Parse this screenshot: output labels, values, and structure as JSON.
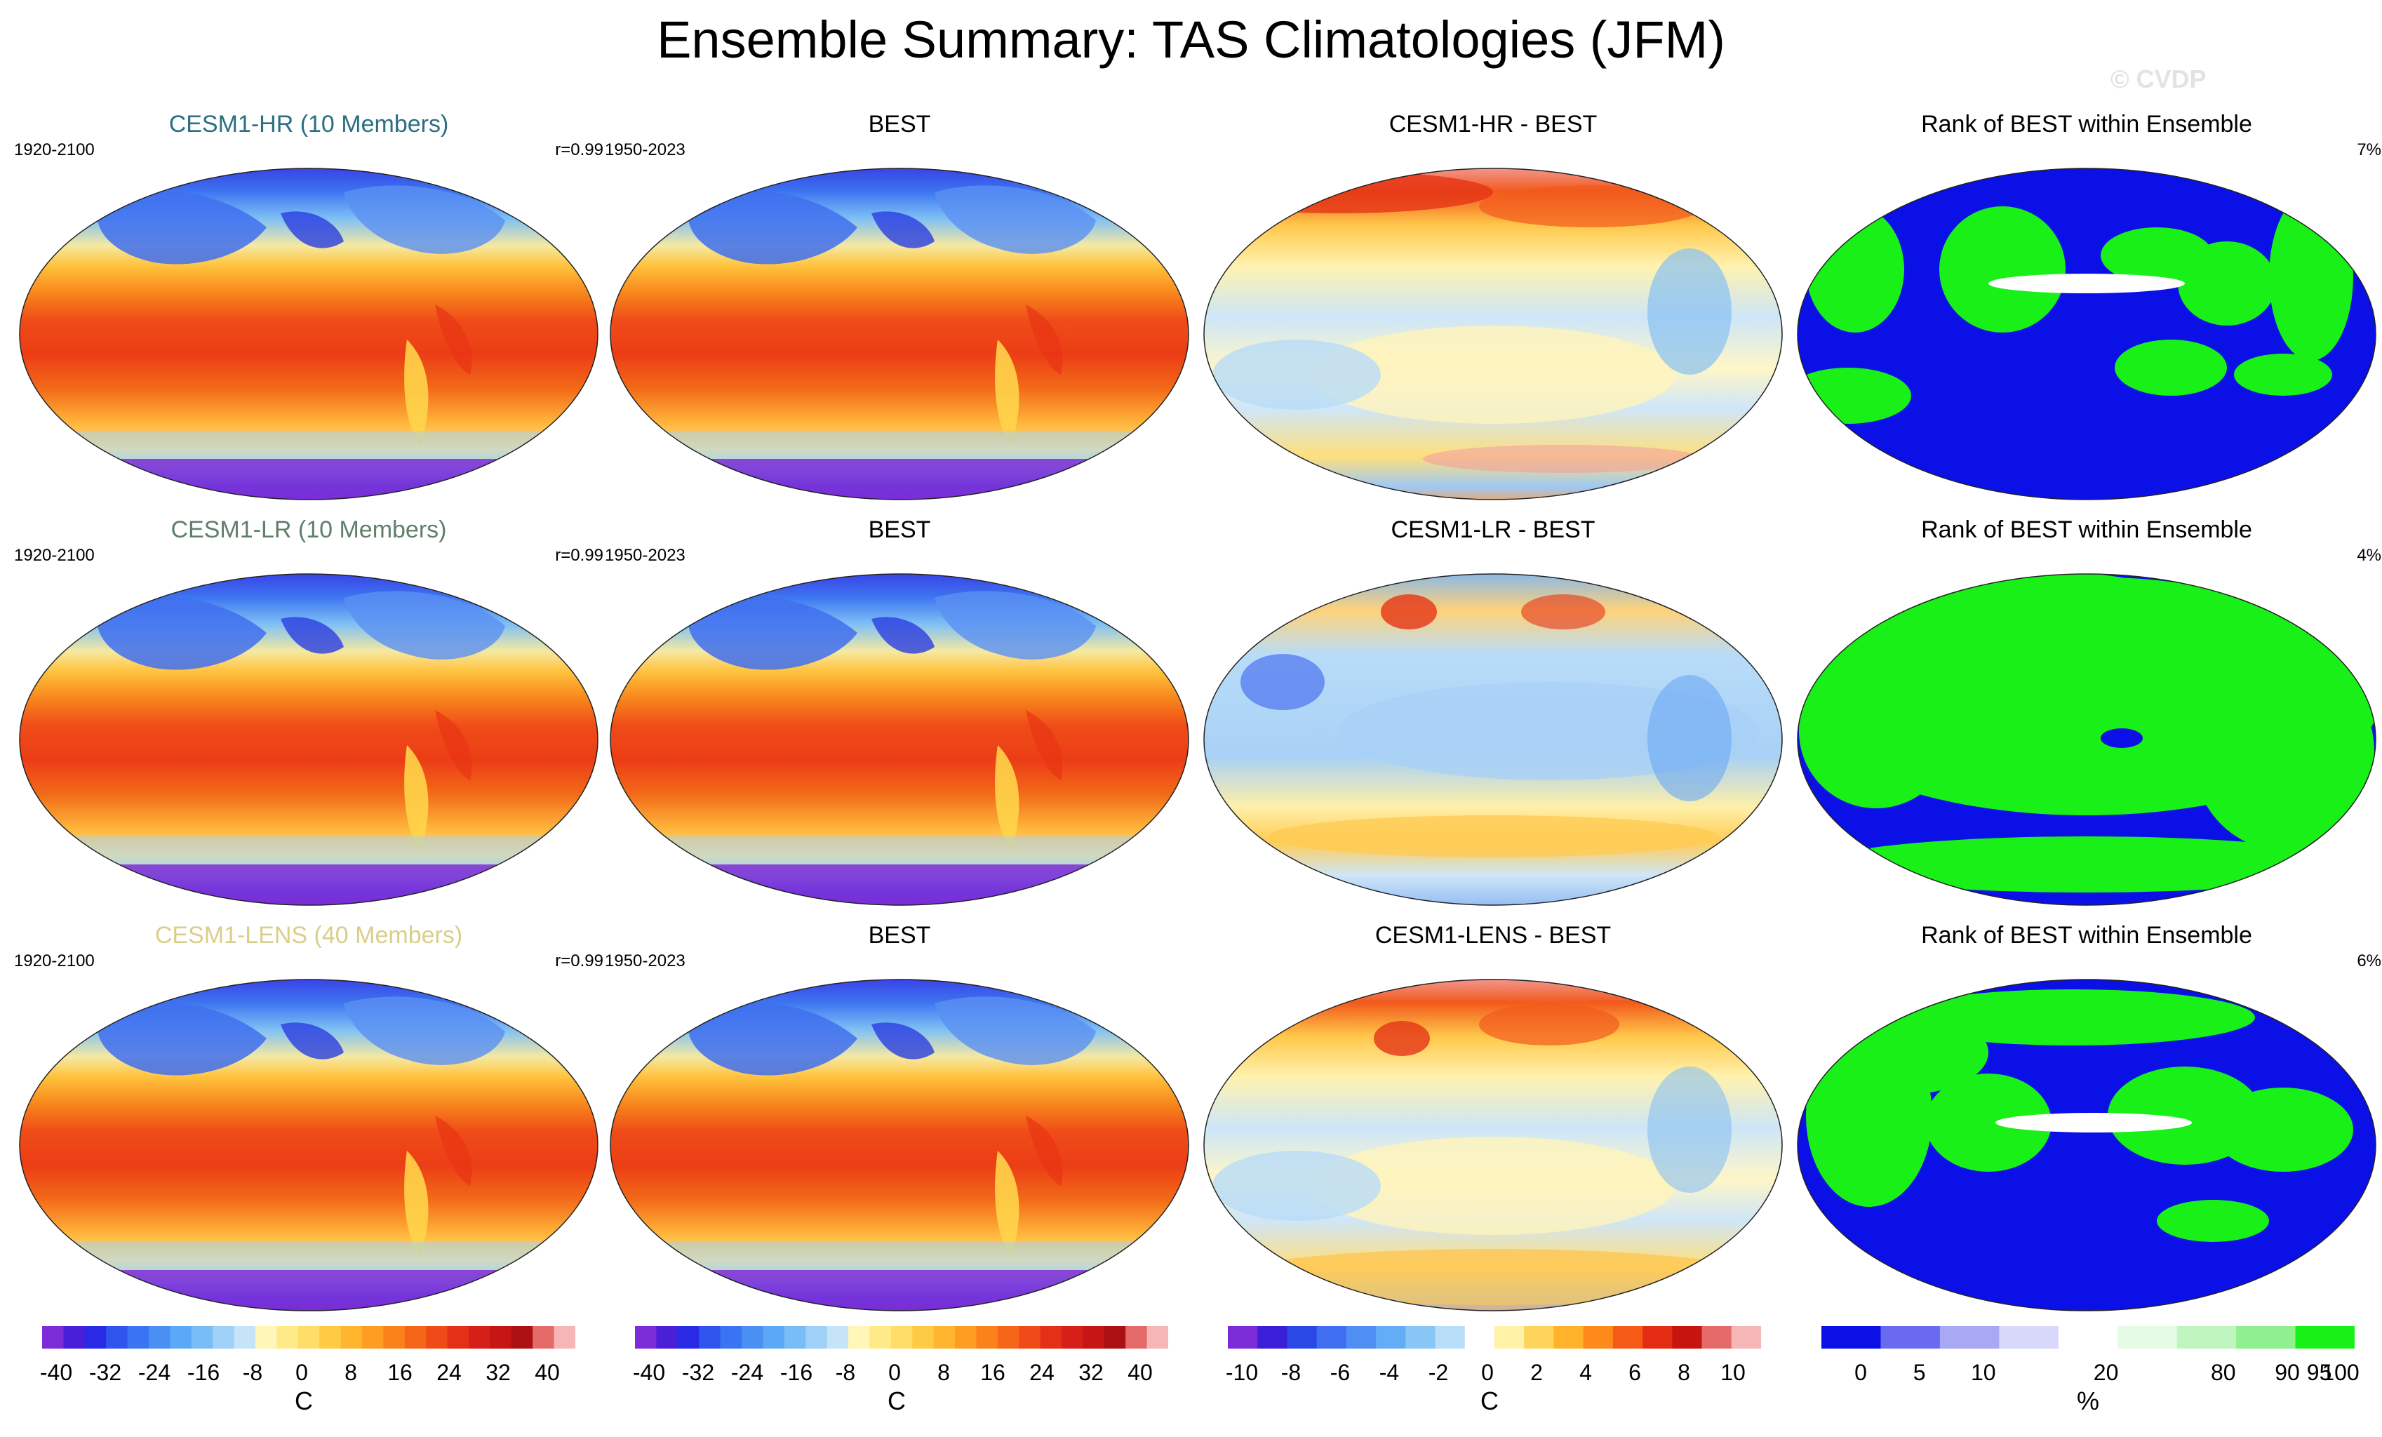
{
  "title": "Ensemble Summary: TAS Climatologies (JFM)",
  "credit": "© CVDP",
  "rows": [
    {
      "model": {
        "title": "CESM1-HR (10 Members)",
        "title_color": "#2b6f80",
        "left": "1920-2100",
        "right": "r=0.99"
      },
      "obs": {
        "title": "BEST",
        "left": "1950-2023"
      },
      "diff": {
        "title": "CESM1-HR - BEST"
      },
      "rank": {
        "title": "Rank of BEST within Ensemble",
        "right": "7%"
      }
    },
    {
      "model": {
        "title": "CESM1-LR (10 Members)",
        "title_color": "#5f7f6a",
        "left": "1920-2100",
        "right": "r=0.99"
      },
      "obs": {
        "title": "BEST",
        "left": "1950-2023"
      },
      "diff": {
        "title": "CESM1-LR - BEST"
      },
      "rank": {
        "title": "Rank of BEST within Ensemble",
        "right": "4%"
      }
    },
    {
      "model": {
        "title": "CESM1-LENS (40 Members)",
        "title_color": "#d9cf8a",
        "left": "1920-2100",
        "right": "r=0.99"
      },
      "obs": {
        "title": "BEST",
        "left": "1950-2023"
      },
      "diff": {
        "title": "CESM1-LENS - BEST"
      },
      "rank": {
        "title": "Rank of BEST within Ensemble",
        "right": "6%"
      }
    }
  ],
  "colorbars": {
    "climatology": {
      "ticks": [
        "-40",
        "-32",
        "-24",
        "-16",
        "-8",
        "0",
        "8",
        "16",
        "24",
        "32",
        "40"
      ],
      "unit": "C",
      "colors": [
        "#7b2cd6",
        "#4a1fd8",
        "#2a2ae6",
        "#2f55ee",
        "#3a74f2",
        "#4a8ff4",
        "#5aa8f6",
        "#79bdf6",
        "#9fd0f7",
        "#c6e4f8",
        "#fff6b8",
        "#ffea8a",
        "#ffdd66",
        "#ffcb45",
        "#ffb52e",
        "#ff9d22",
        "#fb821b",
        "#f56618",
        "#ef4a17",
        "#e43016",
        "#d61f16",
        "#c51515",
        "#ad1010",
        "#e56b6b",
        "#f7b6b6"
      ]
    },
    "difference": {
      "ticks": [
        "-10",
        "-8",
        "-6",
        "-4",
        "-2",
        "0",
        "2",
        "4",
        "6",
        "8",
        "10"
      ],
      "unit": "C",
      "colors": [
        "#7b2cd6",
        "#3b1fd8",
        "#2a48e6",
        "#3f6ff0",
        "#4f8ff4",
        "#62adf6",
        "#88c6f6",
        "#b8def8",
        "#ffffff",
        "#fff2a6",
        "#ffd45a",
        "#ffb22a",
        "#ff8a1c",
        "#f55a16",
        "#e42c12",
        "#c8140f",
        "#e56b6b",
        "#f7b6b6"
      ]
    },
    "rank": {
      "ticks": [
        "0",
        "5",
        "10",
        "20",
        "80",
        "90",
        "95",
        "100"
      ],
      "unit": "%",
      "colors": [
        "#0a10e6",
        "#6a6af0",
        "#a8a8f4",
        "#d8d8fa",
        "#ffffff",
        "#e6fbe6",
        "#bff5bf",
        "#8ef08e",
        "#18f018"
      ]
    }
  }
}
